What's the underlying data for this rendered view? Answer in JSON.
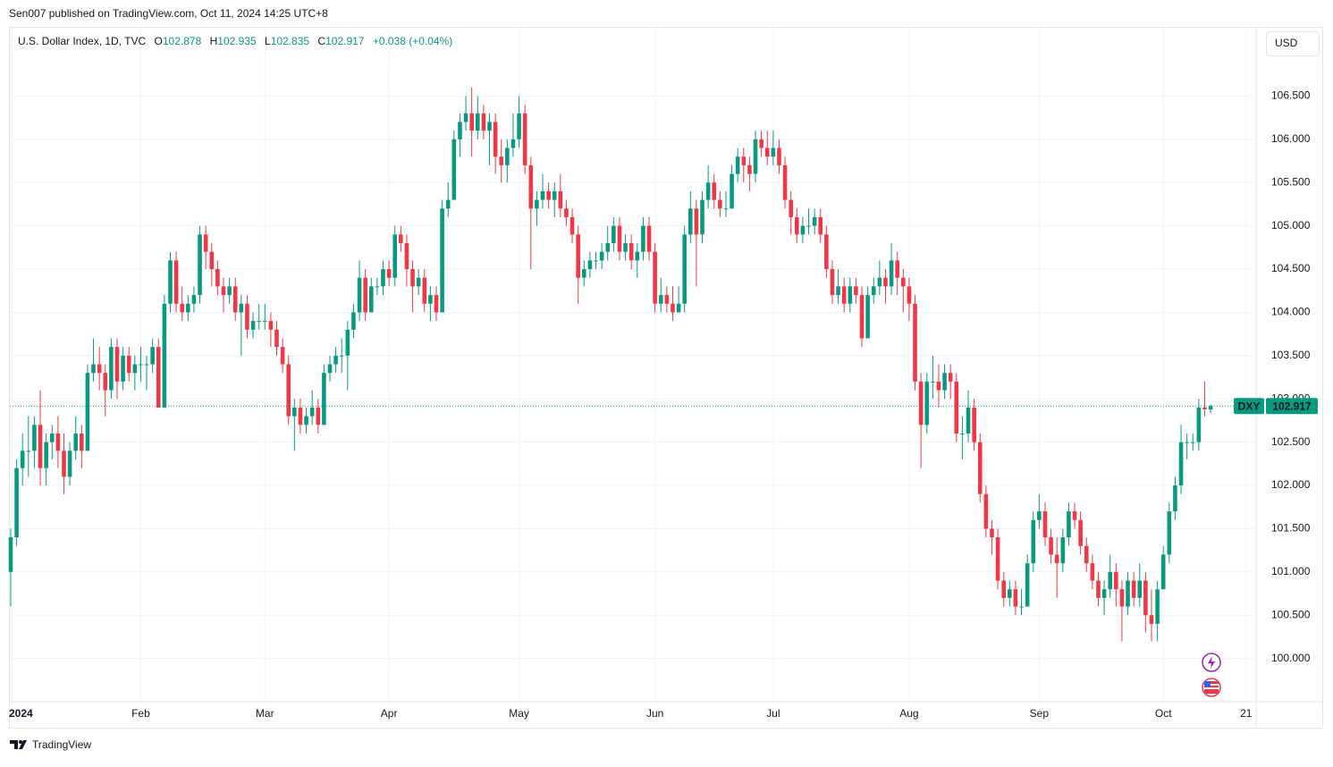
{
  "header": {
    "published": "Sen007 published on TradingView.com, Oct 11, 2024 14:25 UTC+8",
    "brand": "TradingView"
  },
  "chart_data": {
    "type": "candlestick",
    "title": "U.S. Dollar Index, 1D, TVC",
    "ohlc_letters": [
      "O",
      "H",
      "L",
      "C"
    ],
    "change_label": "+0.038 (+0.04%)",
    "currency": "USD",
    "symbol": "DXY",
    "up_color": "#089981",
    "down_color": "#f23645",
    "grid": true,
    "ylim": [
      99.5,
      107.3
    ],
    "yticks": [
      {
        "value": 100,
        "label": "100.000"
      },
      {
        "value": 100.5,
        "label": "100.500"
      },
      {
        "value": 101,
        "label": "101.000"
      },
      {
        "value": 101.5,
        "label": "101.500"
      },
      {
        "value": 102,
        "label": "102.000"
      },
      {
        "value": 102.5,
        "label": "102.500"
      },
      {
        "value": 103,
        "label": "103.000"
      },
      {
        "value": 103.5,
        "label": "103.500"
      },
      {
        "value": 104,
        "label": "104.000"
      },
      {
        "value": 104.5,
        "label": "104.500"
      },
      {
        "value": 105,
        "label": "105.000"
      },
      {
        "value": 105.5,
        "label": "105.500"
      },
      {
        "value": 106,
        "label": "106.000"
      },
      {
        "value": 106.5,
        "label": "106.500"
      }
    ],
    "xlim": [
      -0.3,
      210.7
    ],
    "xticks": [
      {
        "value": 0,
        "label": "2024"
      },
      {
        "value": 22,
        "label": "Feb"
      },
      {
        "value": 43,
        "label": "Mar"
      },
      {
        "value": 64,
        "label": "Apr"
      },
      {
        "value": 86,
        "label": "May"
      },
      {
        "value": 109,
        "label": "Jun"
      },
      {
        "value": 129,
        "label": "Jul"
      },
      {
        "value": 152,
        "label": "Aug"
      },
      {
        "value": 174,
        "label": "Sep"
      },
      {
        "value": 195,
        "label": "Oct"
      },
      {
        "value": 209,
        "label": "21"
      }
    ],
    "candles": [
      [
        101.0,
        101.5,
        100.6,
        101.4
      ],
      [
        101.4,
        102.3,
        101.3,
        102.2
      ],
      [
        102.2,
        102.6,
        102.0,
        102.4
      ],
      [
        102.4,
        102.8,
        102.1,
        102.4
      ],
      [
        102.4,
        102.8,
        102.2,
        102.7
      ],
      [
        102.7,
        103.1,
        102.0,
        102.2
      ],
      [
        102.2,
        102.6,
        102.0,
        102.5
      ],
      [
        102.5,
        102.7,
        102.3,
        102.6
      ],
      [
        102.6,
        102.8,
        102.2,
        102.4
      ],
      [
        102.4,
        102.6,
        101.9,
        102.1
      ],
      [
        102.1,
        102.5,
        102.0,
        102.4
      ],
      [
        102.4,
        102.8,
        102.3,
        102.6
      ],
      [
        102.6,
        102.7,
        102.2,
        102.4
      ],
      [
        102.4,
        103.4,
        102.4,
        103.3
      ],
      [
        103.3,
        103.7,
        103.2,
        103.4
      ],
      [
        103.4,
        103.6,
        103.1,
        103.3
      ],
      [
        103.3,
        103.4,
        102.8,
        103.1
      ],
      [
        103.1,
        103.7,
        103.0,
        103.6
      ],
      [
        103.6,
        103.7,
        103.0,
        103.2
      ],
      [
        103.2,
        103.6,
        103.1,
        103.5
      ],
      [
        103.5,
        103.6,
        103.2,
        103.3
      ],
      [
        103.3,
        103.5,
        103.1,
        103.4
      ],
      [
        103.4,
        103.6,
        103.2,
        103.4
      ],
      [
        103.4,
        103.5,
        103.1,
        103.4
      ],
      [
        103.4,
        103.7,
        103.3,
        103.6
      ],
      [
        103.6,
        103.7,
        102.9,
        102.9
      ],
      [
        102.9,
        104.2,
        102.9,
        104.1
      ],
      [
        104.1,
        104.7,
        104.0,
        104.6
      ],
      [
        104.6,
        104.7,
        104.0,
        104.1
      ],
      [
        104.1,
        104.3,
        103.9,
        104.0
      ],
      [
        104.0,
        104.2,
        103.9,
        104.1
      ],
      [
        104.1,
        104.3,
        104.0,
        104.2
      ],
      [
        104.2,
        105.0,
        104.1,
        104.9
      ],
      [
        104.9,
        105.0,
        104.5,
        104.7
      ],
      [
        104.7,
        104.8,
        104.3,
        104.5
      ],
      [
        104.5,
        104.6,
        104.2,
        104.3
      ],
      [
        104.3,
        104.4,
        104.0,
        104.2
      ],
      [
        104.2,
        104.4,
        104.1,
        104.3
      ],
      [
        104.3,
        104.4,
        103.9,
        104.0
      ],
      [
        104.0,
        104.2,
        103.5,
        104.1
      ],
      [
        104.1,
        104.2,
        103.7,
        103.8
      ],
      [
        103.8,
        104.0,
        103.7,
        103.9
      ],
      [
        103.9,
        104.1,
        103.8,
        103.9
      ],
      [
        103.9,
        104.1,
        103.8,
        103.9
      ],
      [
        103.9,
        104.0,
        103.6,
        103.8
      ],
      [
        103.8,
        103.9,
        103.5,
        103.6
      ],
      [
        103.6,
        103.7,
        103.3,
        103.4
      ],
      [
        103.4,
        103.5,
        102.7,
        102.8
      ],
      [
        102.8,
        103.0,
        102.4,
        102.9
      ],
      [
        102.9,
        103.0,
        102.6,
        102.7
      ],
      [
        102.7,
        102.9,
        102.6,
        102.8
      ],
      [
        102.8,
        103.1,
        102.7,
        102.9
      ],
      [
        102.9,
        103.0,
        102.6,
        102.7
      ],
      [
        102.7,
        103.4,
        102.7,
        103.3
      ],
      [
        103.3,
        103.5,
        103.2,
        103.4
      ],
      [
        103.4,
        103.6,
        103.3,
        103.5
      ],
      [
        103.5,
        103.7,
        103.3,
        103.5
      ],
      [
        103.5,
        103.9,
        103.1,
        103.8
      ],
      [
        103.8,
        104.1,
        103.7,
        104.0
      ],
      [
        104.0,
        104.6,
        103.9,
        104.4
      ],
      [
        104.4,
        104.5,
        103.9,
        104.0
      ],
      [
        104.0,
        104.4,
        104.0,
        104.3
      ],
      [
        104.3,
        104.4,
        104.2,
        104.3
      ],
      [
        104.3,
        104.6,
        104.2,
        104.5
      ],
      [
        104.5,
        104.6,
        104.3,
        104.4
      ],
      [
        104.4,
        105.0,
        104.3,
        104.9
      ],
      [
        104.9,
        105.0,
        104.7,
        104.8
      ],
      [
        104.8,
        104.9,
        104.3,
        104.5
      ],
      [
        104.5,
        104.6,
        104.0,
        104.3
      ],
      [
        104.3,
        104.5,
        104.2,
        104.4
      ],
      [
        104.4,
        104.5,
        104.0,
        104.1
      ],
      [
        104.1,
        104.3,
        103.9,
        104.2
      ],
      [
        104.2,
        104.3,
        103.9,
        104.0
      ],
      [
        104.0,
        105.3,
        104.0,
        105.2
      ],
      [
        105.2,
        105.5,
        105.1,
        105.3
      ],
      [
        105.3,
        106.1,
        105.3,
        106.0
      ],
      [
        106.0,
        106.3,
        105.8,
        106.2
      ],
      [
        106.2,
        106.5,
        106.1,
        106.3
      ],
      [
        106.3,
        106.6,
        105.8,
        106.1
      ],
      [
        106.1,
        106.5,
        106.0,
        106.3
      ],
      [
        106.3,
        106.4,
        106.0,
        106.1
      ],
      [
        106.1,
        106.3,
        105.7,
        106.2
      ],
      [
        106.2,
        106.3,
        105.6,
        105.8
      ],
      [
        105.8,
        106.0,
        105.5,
        105.7
      ],
      [
        105.7,
        106.0,
        105.5,
        105.9
      ],
      [
        105.9,
        106.3,
        105.8,
        106.0
      ],
      [
        106.0,
        106.5,
        105.9,
        106.3
      ],
      [
        106.3,
        106.4,
        105.6,
        105.7
      ],
      [
        105.7,
        105.8,
        104.5,
        105.2
      ],
      [
        105.2,
        105.4,
        105.0,
        105.3
      ],
      [
        105.3,
        105.6,
        105.2,
        105.4
      ],
      [
        105.4,
        105.5,
        105.2,
        105.3
      ],
      [
        105.3,
        105.5,
        105.1,
        105.4
      ],
      [
        105.4,
        105.6,
        105.1,
        105.2
      ],
      [
        105.2,
        105.3,
        105.0,
        105.1
      ],
      [
        105.1,
        105.2,
        104.8,
        104.9
      ],
      [
        104.9,
        105.0,
        104.1,
        104.4
      ],
      [
        104.4,
        104.6,
        104.3,
        104.5
      ],
      [
        104.5,
        104.7,
        104.4,
        104.6
      ],
      [
        104.6,
        104.7,
        104.5,
        104.6
      ],
      [
        104.6,
        104.8,
        104.5,
        104.7
      ],
      [
        104.7,
        105.0,
        104.6,
        104.8
      ],
      [
        104.8,
        105.1,
        104.7,
        105.0
      ],
      [
        105.0,
        105.1,
        104.6,
        104.7
      ],
      [
        104.7,
        104.9,
        104.6,
        104.8
      ],
      [
        104.8,
        104.9,
        104.5,
        104.6
      ],
      [
        104.6,
        104.8,
        104.4,
        104.7
      ],
      [
        104.7,
        105.1,
        104.6,
        105.0
      ],
      [
        105.0,
        105.1,
        104.6,
        104.7
      ],
      [
        104.7,
        104.8,
        104.0,
        104.1
      ],
      [
        104.1,
        104.4,
        104.0,
        104.2
      ],
      [
        104.2,
        104.3,
        104.0,
        104.1
      ],
      [
        104.1,
        104.3,
        103.9,
        104.0
      ],
      [
        104.0,
        104.3,
        104.0,
        104.1
      ],
      [
        104.1,
        105.0,
        104.0,
        104.9
      ],
      [
        104.9,
        105.4,
        104.8,
        105.2
      ],
      [
        105.2,
        105.3,
        104.3,
        104.9
      ],
      [
        104.9,
        105.4,
        104.8,
        105.3
      ],
      [
        105.3,
        105.7,
        105.2,
        105.5
      ],
      [
        105.5,
        105.6,
        105.2,
        105.3
      ],
      [
        105.3,
        105.4,
        105.1,
        105.2
      ],
      [
        105.2,
        105.4,
        105.1,
        105.2
      ],
      [
        105.2,
        105.7,
        105.2,
        105.6
      ],
      [
        105.6,
        105.9,
        105.5,
        105.8
      ],
      [
        105.8,
        105.9,
        105.5,
        105.7
      ],
      [
        105.7,
        105.8,
        105.4,
        105.6
      ],
      [
        105.6,
        106.1,
        105.5,
        106.0
      ],
      [
        106.0,
        106.1,
        105.8,
        105.9
      ],
      [
        105.9,
        106.1,
        105.7,
        105.8
      ],
      [
        105.8,
        106.1,
        105.7,
        105.9
      ],
      [
        105.9,
        106.0,
        105.6,
        105.7
      ],
      [
        105.7,
        105.8,
        105.2,
        105.3
      ],
      [
        105.3,
        105.4,
        104.9,
        105.1
      ],
      [
        105.1,
        105.2,
        104.8,
        104.9
      ],
      [
        104.9,
        105.1,
        104.8,
        105.0
      ],
      [
        105.0,
        105.2,
        104.9,
        105.0
      ],
      [
        105.0,
        105.2,
        104.9,
        105.1
      ],
      [
        105.1,
        105.2,
        104.8,
        104.9
      ],
      [
        104.9,
        105.0,
        104.4,
        104.5
      ],
      [
        104.5,
        104.6,
        104.1,
        104.2
      ],
      [
        104.2,
        104.5,
        104.1,
        104.3
      ],
      [
        104.3,
        104.4,
        104.0,
        104.1
      ],
      [
        104.1,
        104.4,
        104.0,
        104.3
      ],
      [
        104.3,
        104.4,
        104.1,
        104.2
      ],
      [
        104.2,
        104.3,
        103.6,
        103.7
      ],
      [
        103.7,
        104.3,
        103.7,
        104.2
      ],
      [
        104.2,
        104.4,
        104.1,
        104.3
      ],
      [
        104.3,
        104.6,
        104.2,
        104.4
      ],
      [
        104.4,
        104.5,
        104.1,
        104.3
      ],
      [
        104.3,
        104.8,
        104.2,
        104.6
      ],
      [
        104.6,
        104.7,
        104.2,
        104.4
      ],
      [
        104.4,
        104.5,
        104.0,
        104.3
      ],
      [
        104.3,
        104.4,
        103.9,
        104.1
      ],
      [
        104.1,
        104.2,
        103.1,
        103.2
      ],
      [
        103.2,
        103.3,
        102.2,
        102.7
      ],
      [
        102.7,
        103.3,
        102.6,
        103.2
      ],
      [
        103.2,
        103.5,
        103.0,
        103.2
      ],
      [
        103.2,
        103.4,
        102.9,
        103.1
      ],
      [
        103.1,
        103.4,
        103.0,
        103.3
      ],
      [
        103.3,
        103.4,
        103.0,
        103.2
      ],
      [
        103.2,
        103.3,
        102.5,
        102.6
      ],
      [
        102.6,
        102.8,
        102.3,
        102.6
      ],
      [
        102.6,
        103.1,
        102.5,
        102.9
      ],
      [
        102.9,
        103.0,
        102.4,
        102.5
      ],
      [
        102.5,
        102.6,
        101.8,
        101.9
      ],
      [
        101.9,
        102.0,
        101.4,
        101.5
      ],
      [
        101.5,
        101.6,
        101.2,
        101.4
      ],
      [
        101.4,
        101.5,
        100.8,
        100.9
      ],
      [
        100.9,
        101.0,
        100.6,
        100.7
      ],
      [
        100.7,
        100.9,
        100.6,
        100.8
      ],
      [
        100.8,
        100.9,
        100.5,
        100.6
      ],
      [
        100.6,
        100.8,
        100.5,
        100.6
      ],
      [
        100.6,
        101.2,
        100.6,
        101.1
      ],
      [
        101.1,
        101.7,
        101.0,
        101.6
      ],
      [
        101.6,
        101.9,
        101.5,
        101.7
      ],
      [
        101.7,
        101.8,
        101.3,
        101.4
      ],
      [
        101.4,
        101.5,
        101.1,
        101.2
      ],
      [
        101.2,
        101.4,
        100.7,
        101.1
      ],
      [
        101.1,
        101.5,
        101.0,
        101.4
      ],
      [
        101.4,
        101.8,
        101.3,
        101.7
      ],
      [
        101.7,
        101.8,
        101.5,
        101.6
      ],
      [
        101.6,
        101.7,
        101.2,
        101.3
      ],
      [
        101.3,
        101.4,
        101.0,
        101.1
      ],
      [
        101.1,
        101.2,
        100.8,
        100.9
      ],
      [
        100.9,
        101.0,
        100.6,
        100.7
      ],
      [
        100.7,
        100.9,
        100.5,
        100.8
      ],
      [
        100.8,
        101.2,
        100.7,
        101.0
      ],
      [
        101.0,
        101.1,
        100.6,
        100.8
      ],
      [
        100.8,
        100.9,
        100.2,
        100.6
      ],
      [
        100.6,
        101.0,
        100.5,
        100.9
      ],
      [
        100.9,
        101.0,
        100.6,
        100.7
      ],
      [
        100.7,
        101.1,
        100.6,
        100.9
      ],
      [
        100.9,
        101.0,
        100.3,
        100.5
      ],
      [
        100.5,
        100.8,
        100.2,
        100.4
      ],
      [
        100.4,
        100.9,
        100.2,
        100.8
      ],
      [
        100.8,
        101.3,
        100.8,
        101.2
      ],
      [
        101.2,
        101.8,
        101.1,
        101.7
      ],
      [
        101.7,
        102.1,
        101.6,
        102.0
      ],
      [
        102.0,
        102.7,
        101.9,
        102.5
      ],
      [
        102.5,
        102.6,
        102.3,
        102.5
      ],
      [
        102.5,
        102.6,
        102.4,
        102.5
      ],
      [
        102.5,
        103.0,
        102.4,
        102.9
      ],
      [
        102.9,
        103.2,
        102.8,
        102.88
      ],
      [
        102.878,
        102.935,
        102.835,
        102.917
      ]
    ]
  }
}
